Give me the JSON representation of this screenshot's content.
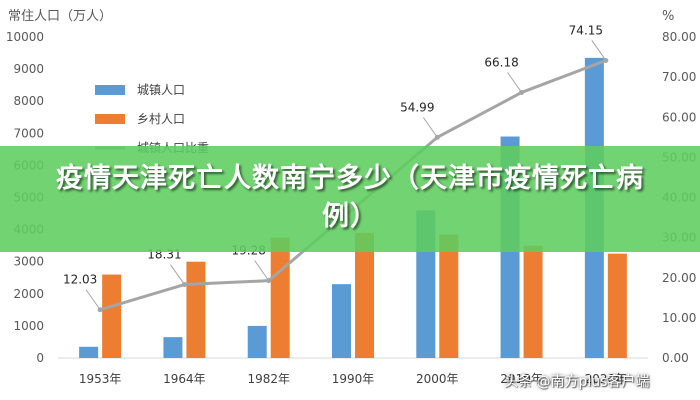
{
  "article": {
    "headline": "疫情天津死亡人数南宁多少（天津市疫情死亡病例）",
    "watermark": "头条 @南方plus客户端"
  },
  "colors": {
    "urban": "#5B9BD5",
    "rural": "#ED7D31",
    "ratio_line": "#A5A5A5",
    "banner": "#5FCD5F"
  },
  "chart_data": {
    "type": "bar",
    "categories": [
      "1953年",
      "1964年",
      "1982年",
      "1990年",
      "2000年",
      "2010年",
      "2020年"
    ],
    "series": [
      {
        "name": "城镇人口",
        "type": "bar",
        "axis": "left",
        "values": [
          350,
          650,
          1000,
          2300,
          4600,
          6900,
          9350
        ]
      },
      {
        "name": "乡村人口",
        "type": "bar",
        "axis": "left",
        "values": [
          2600,
          3000,
          3750,
          3900,
          3850,
          3500,
          3250
        ]
      },
      {
        "name": "城镇人口比重",
        "type": "line",
        "axis": "right",
        "values": [
          12.03,
          18.31,
          19.28,
          null,
          54.99,
          66.18,
          74.15
        ],
        "labels": [
          "12.03",
          "18.31",
          "19.28",
          "",
          "54.99",
          "66.18",
          "74.15"
        ]
      }
    ],
    "ylabel": "常住人口（万人）",
    "y2label": "%",
    "ylim": [
      0,
      10000
    ],
    "y2lim": [
      0,
      80
    ],
    "yticks": [
      "0",
      "1000",
      "2000",
      "3000",
      "4000",
      "5000",
      "6000",
      "7000",
      "8000",
      "9000",
      "10000"
    ],
    "y2ticks": [
      "0.00",
      "10.00",
      "20.00",
      "30.00",
      "40.00",
      "50.00",
      "60.00",
      "70.00",
      "80.00"
    ],
    "legend_position": "top-left",
    "grid": false
  }
}
